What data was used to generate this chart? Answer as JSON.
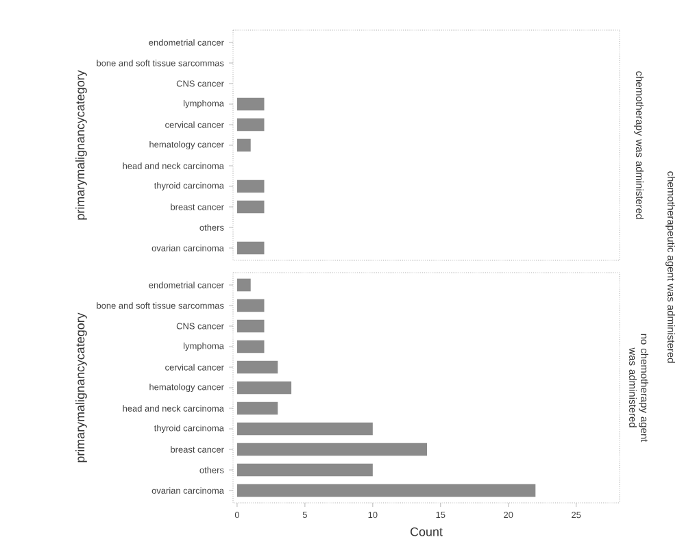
{
  "chart_data": [
    {
      "type": "bar",
      "orientation": "horizontal",
      "ylabel": "primarymalignancycategory",
      "y2label": "chemotherapy was administered",
      "annotations": [
        "chemotherapeutic agent was administered"
      ],
      "categories": [
        "endometrial cancer",
        "bone and soft tissue sarcommas",
        "CNS cancer",
        "lymphoma",
        "cervical cancer",
        "hematology cancer",
        "head and neck carcinoma",
        "thyroid carcinoma",
        "breast cancer",
        "others",
        "ovarian carcinoma"
      ],
      "values": [
        0,
        0,
        0,
        2,
        2,
        1,
        0,
        2,
        2,
        0,
        2
      ],
      "color": "#8a8a8a",
      "xlim": [
        -0.3,
        28.2
      ],
      "xticks": [
        0,
        5,
        10,
        15,
        20,
        25
      ],
      "tick_labels": "y",
      "grid": false
    },
    {
      "type": "bar",
      "orientation": "horizontal",
      "xlabel": "Count",
      "ylabel": "primarymalignancycategory",
      "y2label": "no chemotherapy agent was administered",
      "categories": [
        "endometrial cancer",
        "bone and soft tissue sarcommas",
        "CNS cancer",
        "lymphoma",
        "cervical cancer",
        "hematology cancer",
        "head and neck carcinoma",
        "thyroid carcinoma",
        "breast cancer",
        "others",
        "ovarian carcinoma"
      ],
      "values": [
        1,
        2,
        2,
        2,
        3,
        4,
        3,
        10,
        14,
        10,
        22
      ],
      "color": "#8a8a8a",
      "xlim": [
        -0.3,
        28.2
      ],
      "xticks": [
        0,
        5,
        10,
        15,
        20,
        25
      ],
      "grid": false
    }
  ]
}
